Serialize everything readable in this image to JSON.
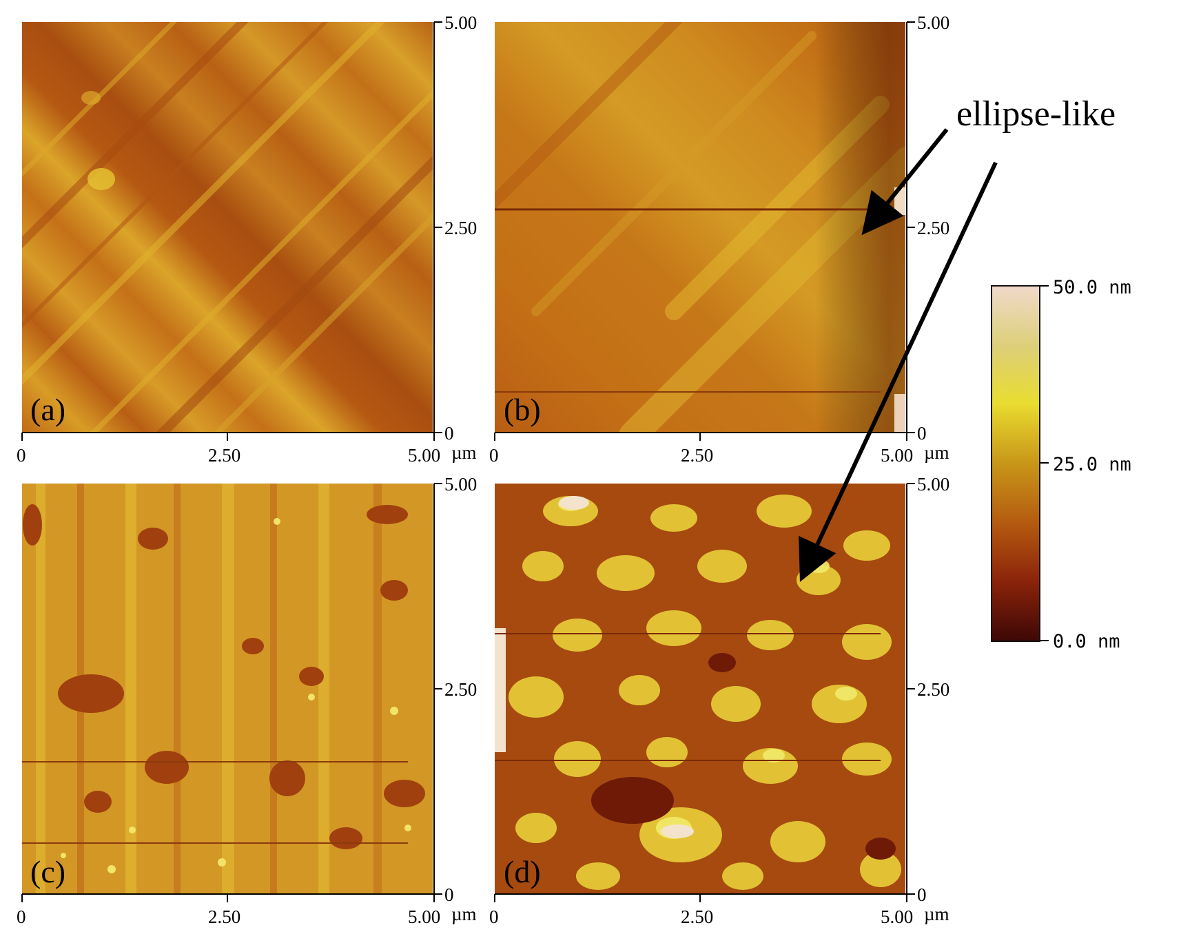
{
  "panels": [
    {
      "label": "(a)",
      "colors": {
        "base": "#c87418",
        "stripe": "#ddad28",
        "dark": "#a84f10"
      }
    },
    {
      "label": "(b)",
      "colors": {
        "base": "#c47016",
        "stripe": "#d9a428",
        "dark": "#9c3e0c"
      }
    },
    {
      "label": "(c)",
      "colors": {
        "base": "#d49a26",
        "stripe": "#e7c036",
        "dark": "#9c3a0c"
      }
    },
    {
      "label": "(d)",
      "colors": {
        "base": "#a54a10",
        "stripe": "#e7cb36",
        "dark": "#7a1e06"
      }
    }
  ],
  "axis": {
    "x_ticks": [
      "0",
      "2.50",
      "5.00"
    ],
    "y_ticks": [
      "5.00",
      "2.50",
      "0"
    ],
    "unit": "µm"
  },
  "colorbar": {
    "max_label": "50.0 nm",
    "mid_label": "25.0 nm",
    "min_label": "0.0 nm",
    "stops": [
      "#f1d9c9",
      "#dccf78",
      "#e9dc30",
      "#c89618",
      "#b45a10",
      "#8c240a",
      "#3e0806"
    ]
  },
  "annotation": {
    "text": "ellipse-like"
  }
}
